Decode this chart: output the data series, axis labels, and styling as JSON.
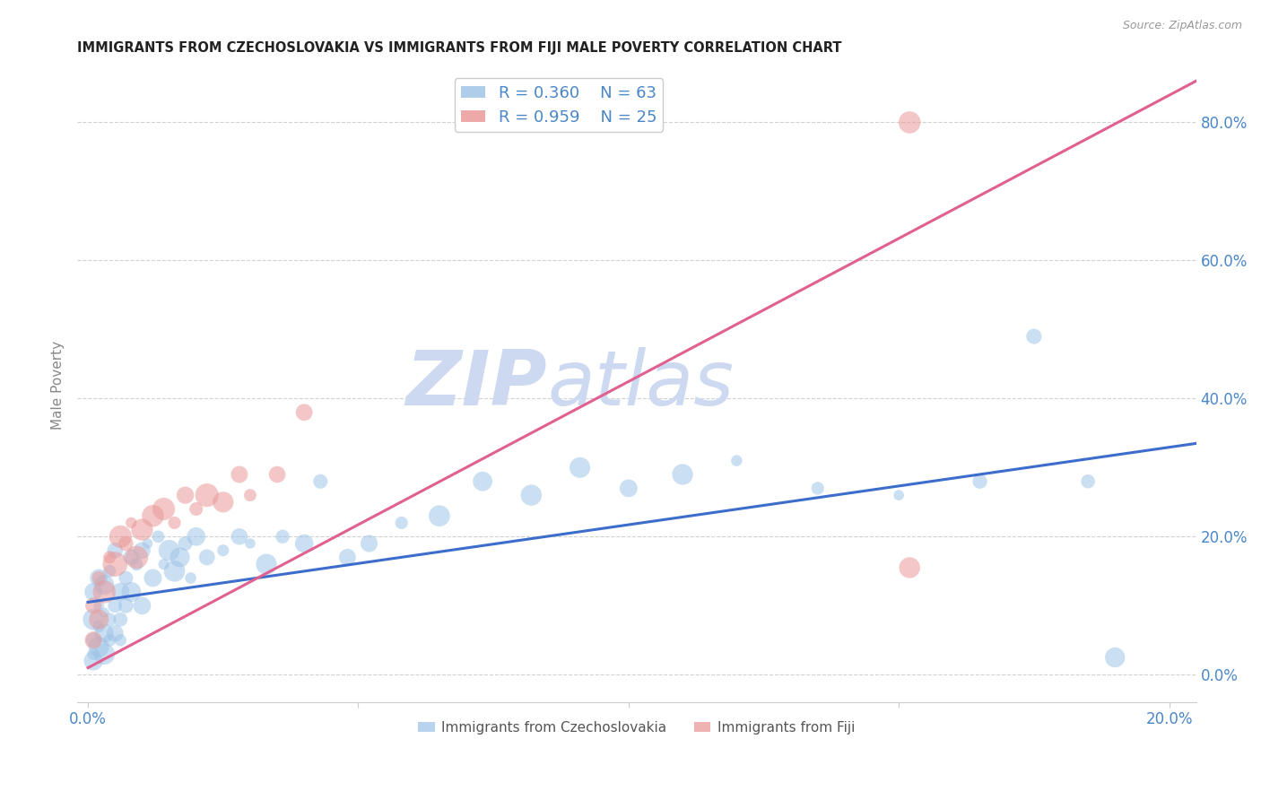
{
  "title": "IMMIGRANTS FROM CZECHOSLOVAKIA VS IMMIGRANTS FROM FIJI MALE POVERTY CORRELATION CHART",
  "source": "Source: ZipAtlas.com",
  "ylabel": "Male Poverty",
  "xlim": [
    -0.002,
    0.205
  ],
  "ylim": [
    -0.04,
    0.88
  ],
  "xticks": [
    0.0,
    0.05,
    0.1,
    0.15,
    0.2
  ],
  "xtick_labels_show": [
    "0.0%",
    "",
    "",
    "",
    "20.0%"
  ],
  "yticks": [
    0.0,
    0.2,
    0.4,
    0.6,
    0.8
  ],
  "ytick_labels": [
    "0.0%",
    "20.0%",
    "40.0%",
    "60.0%",
    "80.0%"
  ],
  "legend_r1": "R = 0.360",
  "legend_n1": "N = 63",
  "legend_r2": "R = 0.959",
  "legend_n2": "N = 25",
  "legend_label1": "Immigrants from Czechoslovakia",
  "legend_label2": "Immigrants from Fiji",
  "color_czech": "#9fc5e8",
  "color_fiji": "#ea9999",
  "color_line_czech": "#3d6dcc",
  "color_line_fiji": "#e06090",
  "background_color": "#ffffff",
  "watermark_zip": "ZIP",
  "watermark_atlas": "atlas",
  "watermark_color": "#ccd9f0",
  "czech_x": [
    0.001,
    0.001,
    0.001,
    0.001,
    0.001,
    0.002,
    0.002,
    0.002,
    0.002,
    0.003,
    0.003,
    0.003,
    0.003,
    0.004,
    0.004,
    0.004,
    0.005,
    0.005,
    0.005,
    0.006,
    0.006,
    0.006,
    0.007,
    0.007,
    0.008,
    0.008,
    0.009,
    0.01,
    0.01,
    0.011,
    0.012,
    0.013,
    0.014,
    0.015,
    0.016,
    0.017,
    0.018,
    0.019,
    0.02,
    0.022,
    0.025,
    0.028,
    0.03,
    0.033,
    0.036,
    0.04,
    0.043,
    0.048,
    0.052,
    0.058,
    0.065,
    0.073,
    0.082,
    0.091,
    0.1,
    0.11,
    0.12,
    0.135,
    0.15,
    0.165,
    0.175,
    0.185,
    0.19
  ],
  "czech_y": [
    0.05,
    0.08,
    0.02,
    0.12,
    0.03,
    0.07,
    0.1,
    0.04,
    0.14,
    0.06,
    0.09,
    0.03,
    0.13,
    0.08,
    0.05,
    0.15,
    0.1,
    0.06,
    0.18,
    0.08,
    0.12,
    0.05,
    0.14,
    0.1,
    0.17,
    0.12,
    0.16,
    0.18,
    0.1,
    0.19,
    0.14,
    0.2,
    0.16,
    0.18,
    0.15,
    0.17,
    0.19,
    0.14,
    0.2,
    0.17,
    0.18,
    0.2,
    0.19,
    0.16,
    0.2,
    0.19,
    0.28,
    0.17,
    0.19,
    0.22,
    0.23,
    0.28,
    0.26,
    0.3,
    0.27,
    0.29,
    0.31,
    0.27,
    0.26,
    0.28,
    0.49,
    0.28,
    0.025
  ],
  "fiji_x": [
    0.001,
    0.001,
    0.002,
    0.002,
    0.003,
    0.004,
    0.005,
    0.006,
    0.007,
    0.008,
    0.009,
    0.01,
    0.012,
    0.014,
    0.016,
    0.018,
    0.02,
    0.022,
    0.025,
    0.028,
    0.03,
    0.035,
    0.04,
    0.152,
    0.152
  ],
  "fiji_y": [
    0.05,
    0.1,
    0.08,
    0.14,
    0.12,
    0.17,
    0.16,
    0.2,
    0.19,
    0.22,
    0.17,
    0.21,
    0.23,
    0.24,
    0.22,
    0.26,
    0.24,
    0.26,
    0.25,
    0.29,
    0.26,
    0.29,
    0.38,
    0.8,
    0.155
  ],
  "cz_line_x0": 0.0,
  "cz_line_y0": 0.105,
  "cz_line_x1": 0.205,
  "cz_line_y1": 0.335,
  "fiji_line_x0": 0.0,
  "fiji_line_y0": 0.01,
  "fiji_line_x1": 0.205,
  "fiji_line_y1": 0.86
}
